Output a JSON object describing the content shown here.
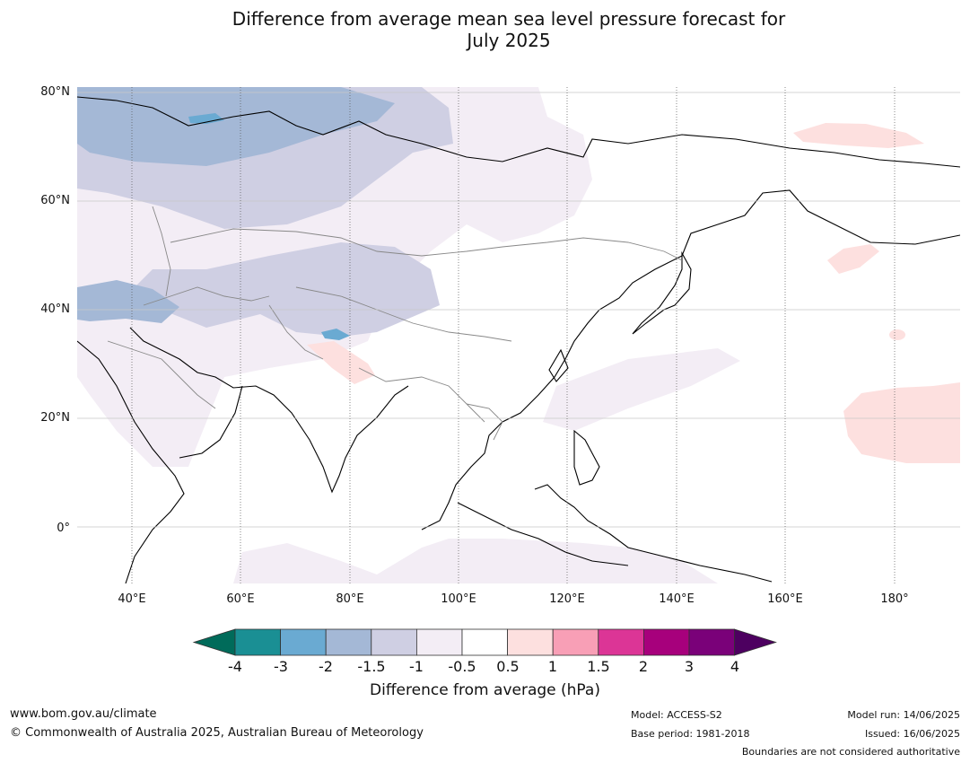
{
  "title_line1": "Difference from average mean sea level pressure forecast for",
  "title_line2": "July 2025",
  "lat_labels": [
    "80°N",
    "60°N",
    "40°N",
    "20°N",
    "0°"
  ],
  "lon_labels": [
    "40°E",
    "60°E",
    "80°E",
    "100°E",
    "120°E",
    "140°E",
    "160°E",
    "180°"
  ],
  "colorbar": {
    "title": "Difference from average (hPa)",
    "ticks": [
      "-4",
      "-3",
      "-2",
      "-1.5",
      "-1",
      "-0.5",
      "0.5",
      "1",
      "1.5",
      "2",
      "3",
      "4"
    ],
    "colors": [
      "#1a8f94",
      "#6aaad2",
      "#a4b8d6",
      "#cfcfe3",
      "#f3edf5",
      "#ffffff",
      "#fde0df",
      "#f89fb6",
      "#dc3596",
      "#a7007c",
      "#7a0179"
    ],
    "extend_low_color": "#006b5a",
    "extend_high_color": "#4d0060"
  },
  "footer": {
    "url": "www.bom.gov.au/climate",
    "copyright": "© Commonwealth of Australia 2025, Australian Bureau of Meteorology",
    "model": "Model: ACCESS-S2",
    "base_period": "Base period: 1981-2018",
    "model_run": "Model run: 14/06/2025",
    "issued": "Issued: 16/06/2025",
    "disclaimer": "Boundaries are not considered authoritative"
  }
}
